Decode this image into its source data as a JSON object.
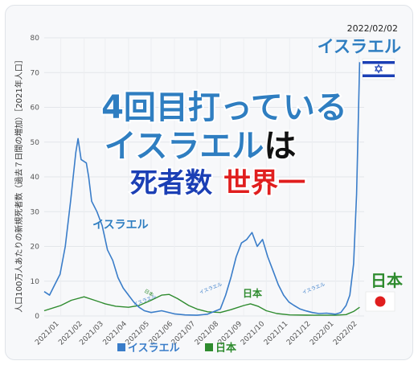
{
  "chart_data": {
    "type": "line",
    "ylabel": "人口100万人あたりの新規死者数（過去７日間の増加）［2021年人口］",
    "ylim": [
      0,
      80
    ],
    "yticks": [
      0,
      10,
      20,
      30,
      40,
      50,
      60,
      70,
      80
    ],
    "xlim": [
      "2020-12-10",
      "2022-02-08"
    ],
    "xticks": [
      {
        "date": "2021-01-01",
        "label": "2021/01"
      },
      {
        "date": "2021-02-01",
        "label": "2021/02"
      },
      {
        "date": "2021-03-01",
        "label": "2021/03"
      },
      {
        "date": "2021-04-01",
        "label": "2021/04"
      },
      {
        "date": "2021-05-01",
        "label": "2021/05"
      },
      {
        "date": "2021-06-01",
        "label": "2021/06"
      },
      {
        "date": "2021-07-01",
        "label": "2021/07"
      },
      {
        "date": "2021-08-01",
        "label": "2021/08"
      },
      {
        "date": "2021-09-01",
        "label": "2021/09"
      },
      {
        "date": "2021-10-01",
        "label": "2021/10"
      },
      {
        "date": "2021-11-01",
        "label": "2021/11"
      },
      {
        "date": "2021-12-01",
        "label": "2021/12"
      },
      {
        "date": "2022-01-01",
        "label": "2022/01"
      },
      {
        "date": "2022-02-01",
        "label": "2022/02"
      }
    ],
    "series": [
      {
        "name": "イスラエル",
        "color": "#3a7dc9",
        "points": [
          [
            "2020-12-10",
            7
          ],
          [
            "2020-12-17",
            6
          ],
          [
            "2020-12-24",
            9
          ],
          [
            "2020-12-31",
            12
          ],
          [
            "2021-01-07",
            20
          ],
          [
            "2021-01-14",
            33
          ],
          [
            "2021-01-21",
            47
          ],
          [
            "2021-01-24",
            51
          ],
          [
            "2021-01-28",
            45
          ],
          [
            "2021-02-04",
            44
          ],
          [
            "2021-02-07",
            40
          ],
          [
            "2021-02-11",
            33
          ],
          [
            "2021-02-18",
            30
          ],
          [
            "2021-02-25",
            26
          ],
          [
            "2021-03-04",
            19
          ],
          [
            "2021-03-11",
            16
          ],
          [
            "2021-03-18",
            11
          ],
          [
            "2021-03-25",
            8
          ],
          [
            "2021-04-01",
            6
          ],
          [
            "2021-04-08",
            4
          ],
          [
            "2021-04-15",
            2.5
          ],
          [
            "2021-04-22",
            1.5
          ],
          [
            "2021-05-01",
            1
          ],
          [
            "2021-05-15",
            1.5
          ],
          [
            "2021-06-01",
            0.6
          ],
          [
            "2021-06-15",
            0.3
          ],
          [
            "2021-07-01",
            0.2
          ],
          [
            "2021-07-15",
            0.5
          ],
          [
            "2021-08-01",
            2
          ],
          [
            "2021-08-08",
            6
          ],
          [
            "2021-08-15",
            11
          ],
          [
            "2021-08-22",
            17
          ],
          [
            "2021-08-29",
            21
          ],
          [
            "2021-09-05",
            22
          ],
          [
            "2021-09-12",
            24
          ],
          [
            "2021-09-19",
            20
          ],
          [
            "2021-09-26",
            22
          ],
          [
            "2021-10-03",
            17
          ],
          [
            "2021-10-10",
            13
          ],
          [
            "2021-10-17",
            9
          ],
          [
            "2021-10-24",
            6
          ],
          [
            "2021-10-31",
            4
          ],
          [
            "2021-11-07",
            3
          ],
          [
            "2021-11-15",
            2
          ],
          [
            "2021-11-22",
            1.5
          ],
          [
            "2021-12-01",
            1
          ],
          [
            "2021-12-10",
            0.7
          ],
          [
            "2021-12-20",
            0.8
          ],
          [
            "2022-01-01",
            0.5
          ],
          [
            "2022-01-08",
            1
          ],
          [
            "2022-01-15",
            3
          ],
          [
            "2022-01-20",
            6
          ],
          [
            "2022-01-25",
            15
          ],
          [
            "2022-01-29",
            35
          ],
          [
            "2022-02-02",
            73
          ]
        ]
      },
      {
        "name": "日本",
        "color": "#2e8b2e",
        "points": [
          [
            "2020-12-10",
            1.5
          ],
          [
            "2021-01-01",
            3
          ],
          [
            "2021-01-15",
            4.5
          ],
          [
            "2021-02-01",
            5.5
          ],
          [
            "2021-02-15",
            4.5
          ],
          [
            "2021-03-01",
            3.5
          ],
          [
            "2021-03-15",
            2.8
          ],
          [
            "2021-04-01",
            2.5
          ],
          [
            "2021-04-15",
            3
          ],
          [
            "2021-05-01",
            4.5
          ],
          [
            "2021-05-15",
            6
          ],
          [
            "2021-05-25",
            6.2
          ],
          [
            "2021-06-05",
            5
          ],
          [
            "2021-06-20",
            3
          ],
          [
            "2021-07-01",
            2
          ],
          [
            "2021-07-15",
            1.2
          ],
          [
            "2021-08-01",
            1
          ],
          [
            "2021-08-15",
            1.8
          ],
          [
            "2021-09-01",
            3
          ],
          [
            "2021-09-10",
            3.5
          ],
          [
            "2021-09-20",
            2.8
          ],
          [
            "2021-10-01",
            1.5
          ],
          [
            "2021-10-15",
            0.7
          ],
          [
            "2021-11-01",
            0.3
          ],
          [
            "2021-12-01",
            0.2
          ],
          [
            "2022-01-01",
            0.2
          ],
          [
            "2022-01-15",
            0.4
          ],
          [
            "2022-01-25",
            1.3
          ],
          [
            "2022-02-02",
            2.5
          ]
        ]
      }
    ],
    "annotations": {
      "date_label": "2022/02/02",
      "israel_top": "イスラエル",
      "israel_wave": "イスラエル",
      "israel_small_1": "イスラエル",
      "israel_small_2": "イスラエル",
      "israel_small_3": "イスラエル",
      "japan_small_1": "日本",
      "japan_wave": "日本",
      "japan_right": "日本"
    },
    "headline": {
      "line1": "4回目打っている",
      "line2_blue": "イスラエル",
      "line2_black": "は",
      "line3_red1": "死者数",
      "line3_red2": "世界一",
      "blue": "#2f7ec1",
      "red": "#e01e1e",
      "black": "#111111"
    },
    "legend": [
      {
        "label": "イスラエル",
        "color": "#3a7dc9"
      },
      {
        "label": "日本",
        "color": "#2e8b2e"
      }
    ]
  }
}
